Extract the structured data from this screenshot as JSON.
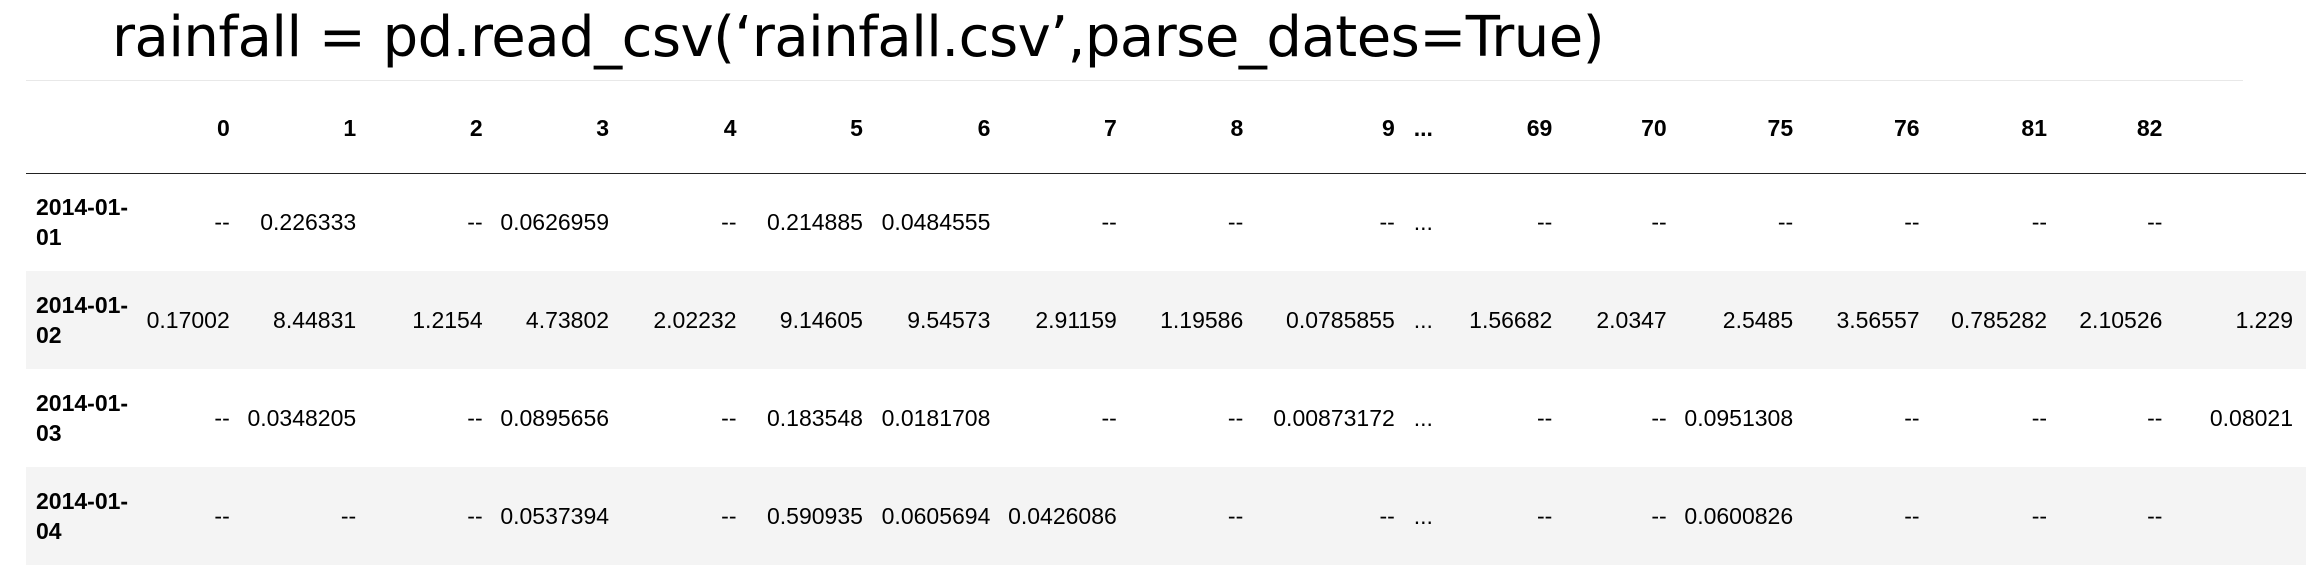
{
  "code": "rainfall = pd.read_csv(‘rainfall.csv’,parse_dates=True)",
  "table": {
    "index_header": "",
    "columns": [
      "0",
      "1",
      "2",
      "3",
      "4",
      "5",
      "6",
      "7",
      "8",
      "9",
      "...",
      "69",
      "70",
      "75",
      "76",
      "81",
      "82",
      ""
    ],
    "rows": [
      {
        "index": "2014-01-01",
        "cells": [
          "--",
          "0.226333",
          "--",
          "0.0626959",
          "--",
          "0.214885",
          "0.0484555",
          "--",
          "--",
          "--",
          "...",
          "--",
          "--",
          "--",
          "--",
          "--",
          "--",
          ""
        ]
      },
      {
        "index": "2014-01-02",
        "cells": [
          "0.17002",
          "8.44831",
          "1.2154",
          "4.73802",
          "2.02232",
          "9.14605",
          "9.54573",
          "2.91159",
          "1.19586",
          "0.0785855",
          "...",
          "1.56682",
          "2.0347",
          "2.5485",
          "3.56557",
          "0.785282",
          "2.10526",
          "1.229"
        ]
      },
      {
        "index": "2014-01-03",
        "cells": [
          "--",
          "0.0348205",
          "--",
          "0.0895656",
          "--",
          "0.183548",
          "0.0181708",
          "--",
          "--",
          "0.00873172",
          "...",
          "--",
          "--",
          "0.0951308",
          "--",
          "--",
          "--",
          "0.08021"
        ]
      },
      {
        "index": "2014-01-04",
        "cells": [
          "--",
          "--",
          "--",
          "0.0537394",
          "--",
          "0.590935",
          "0.0605694",
          "0.0426086",
          "--",
          "--",
          "...",
          "--",
          "--",
          "0.0600826",
          "--",
          "--",
          "--",
          ""
        ]
      }
    ]
  }
}
